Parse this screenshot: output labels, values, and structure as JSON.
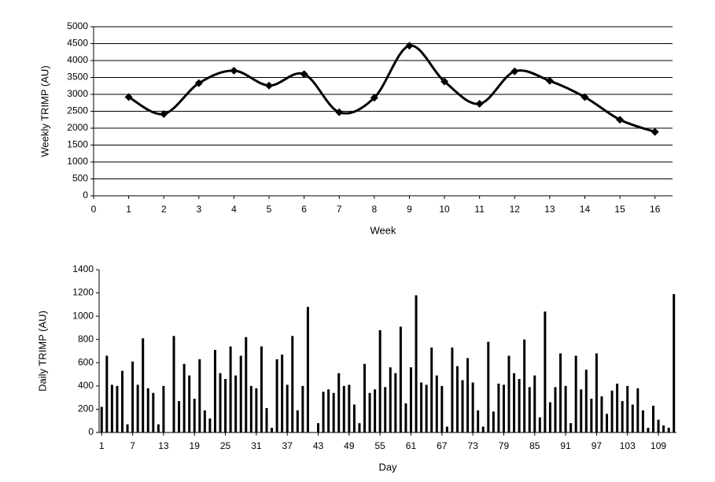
{
  "chart_data": [
    {
      "type": "line",
      "x": [
        1,
        2,
        3,
        4,
        5,
        6,
        7,
        8,
        9,
        10,
        11,
        12,
        13,
        14,
        15,
        16
      ],
      "values": [
        2920,
        2420,
        3330,
        3700,
        3260,
        3600,
        2470,
        2900,
        4440,
        3380,
        2720,
        3680,
        3400,
        2920,
        2250,
        1890
      ],
      "color": "#000000",
      "marker": "diamond",
      "smooth": true,
      "grid": true,
      "xlim": [
        0,
        16.5
      ],
      "xticks": [
        0,
        1,
        2,
        3,
        4,
        5,
        6,
        7,
        8,
        9,
        10,
        11,
        12,
        13,
        14,
        15,
        16
      ],
      "ylim": [
        0,
        5000
      ],
      "yticks": [
        0,
        500,
        1000,
        1500,
        2000,
        2500,
        3000,
        3500,
        4000,
        4500,
        5000
      ],
      "xlabel": "Week",
      "ylabel": "Weekly TRIMP (AU)"
    },
    {
      "type": "bar",
      "x": [
        1,
        2,
        3,
        4,
        5,
        6,
        7,
        8,
        9,
        10,
        11,
        12,
        13,
        14,
        15,
        16,
        17,
        18,
        19,
        20,
        21,
        22,
        23,
        24,
        25,
        26,
        27,
        28,
        29,
        30,
        31,
        32,
        33,
        34,
        35,
        36,
        37,
        38,
        39,
        40,
        41,
        42,
        43,
        44,
        45,
        46,
        47,
        48,
        49,
        50,
        51,
        52,
        53,
        54,
        55,
        56,
        57,
        58,
        59,
        60,
        61,
        62,
        63,
        64,
        65,
        66,
        67,
        68,
        69,
        70,
        71,
        72,
        73,
        74,
        75,
        76,
        77,
        78,
        79,
        80,
        81,
        82,
        83,
        84,
        85,
        86,
        87,
        88,
        89,
        90,
        91,
        92,
        93,
        94,
        95,
        96,
        97,
        98,
        99,
        100,
        101,
        102,
        103,
        104,
        105,
        106,
        107,
        108,
        109,
        110,
        111,
        112
      ],
      "values": [
        220,
        660,
        410,
        400,
        530,
        70,
        610,
        410,
        810,
        380,
        340,
        70,
        400,
        0,
        830,
        270,
        590,
        490,
        290,
        630,
        190,
        120,
        710,
        510,
        460,
        740,
        490,
        660,
        820,
        400,
        380,
        740,
        210,
        40,
        630,
        670,
        410,
        830,
        190,
        400,
        1080,
        0,
        80,
        350,
        370,
        340,
        510,
        400,
        410,
        240,
        80,
        590,
        340,
        370,
        880,
        390,
        560,
        510,
        910,
        250,
        560,
        1180,
        430,
        410,
        730,
        490,
        400,
        50,
        730,
        570,
        450,
        640,
        430,
        190,
        50,
        780,
        180,
        420,
        410,
        660,
        510,
        460,
        800,
        390,
        490,
        130,
        1040,
        260,
        390,
        680,
        400,
        80,
        660,
        370,
        540,
        290,
        680,
        310,
        160,
        360,
        420,
        270,
        400,
        240,
        380,
        190,
        40,
        230,
        110,
        60,
        40,
        1190
      ],
      "color": "#000000",
      "grid": false,
      "xlim": [
        0.5,
        112.5
      ],
      "xticks": [
        1,
        7,
        13,
        19,
        25,
        31,
        37,
        43,
        49,
        55,
        61,
        67,
        73,
        79,
        85,
        91,
        97,
        103,
        109
      ],
      "ylim": [
        0,
        1400
      ],
      "yticks": [
        0,
        200,
        400,
        600,
        800,
        1000,
        1200,
        1400
      ],
      "xlabel": "Day",
      "ylabel": "Daily TRIMP (AU)"
    }
  ]
}
